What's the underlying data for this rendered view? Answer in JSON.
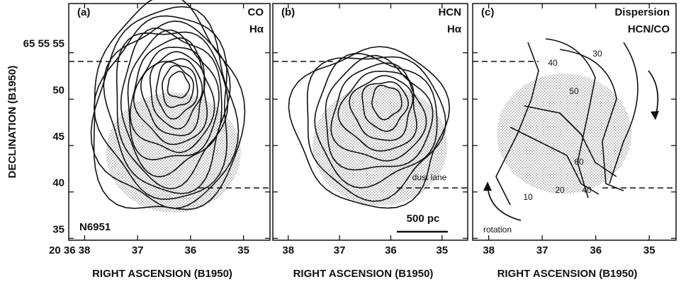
{
  "chart_data": [
    {
      "type": "contour",
      "panel_label": "(a)",
      "tracers": [
        "CO",
        "Hα"
      ],
      "annotations": [
        "N6951"
      ],
      "ylabel": "DECLINATION (B1950)",
      "xlabel": "RIGHT ASCENSION (B1950)",
      "xlim": [
        38.3,
        34.5
      ],
      "ylim": [
        34.8,
        60.3
      ],
      "xticks": [
        {
          "value": 38,
          "label": "20 36 38"
        },
        37,
        36,
        35
      ],
      "yticks": [
        35,
        40,
        45,
        50,
        {
          "value": 55,
          "label": "65 55 55"
        }
      ]
    },
    {
      "type": "contour",
      "panel_label": "(b)",
      "tracers": [
        "HCN",
        "Hα"
      ],
      "annotations": [
        "dust lane",
        "500 pc"
      ],
      "xlabel": "RIGHT ASCENSION (B1950)",
      "xlim": [
        38.3,
        34.5
      ],
      "ylim": [
        34.8,
        60.3
      ],
      "xticks": [
        38,
        37,
        36,
        35
      ],
      "yticks": [
        35,
        40,
        45,
        50,
        55
      ]
    },
    {
      "type": "contour",
      "panel_label": "(c)",
      "tracers": [
        "Dispersion",
        "HCN/CO"
      ],
      "annotations": [
        "rotation"
      ],
      "contour_labels": [
        40,
        30,
        50,
        60,
        10,
        20,
        40
      ],
      "xlabel": "RIGHT ASCENSION (B1950)",
      "xlim": [
        38.3,
        34.5
      ],
      "ylim": [
        34.8,
        60.3
      ],
      "xticks": [
        38,
        37,
        36,
        35
      ],
      "yticks": [
        35,
        40,
        45,
        50,
        55
      ]
    }
  ]
}
